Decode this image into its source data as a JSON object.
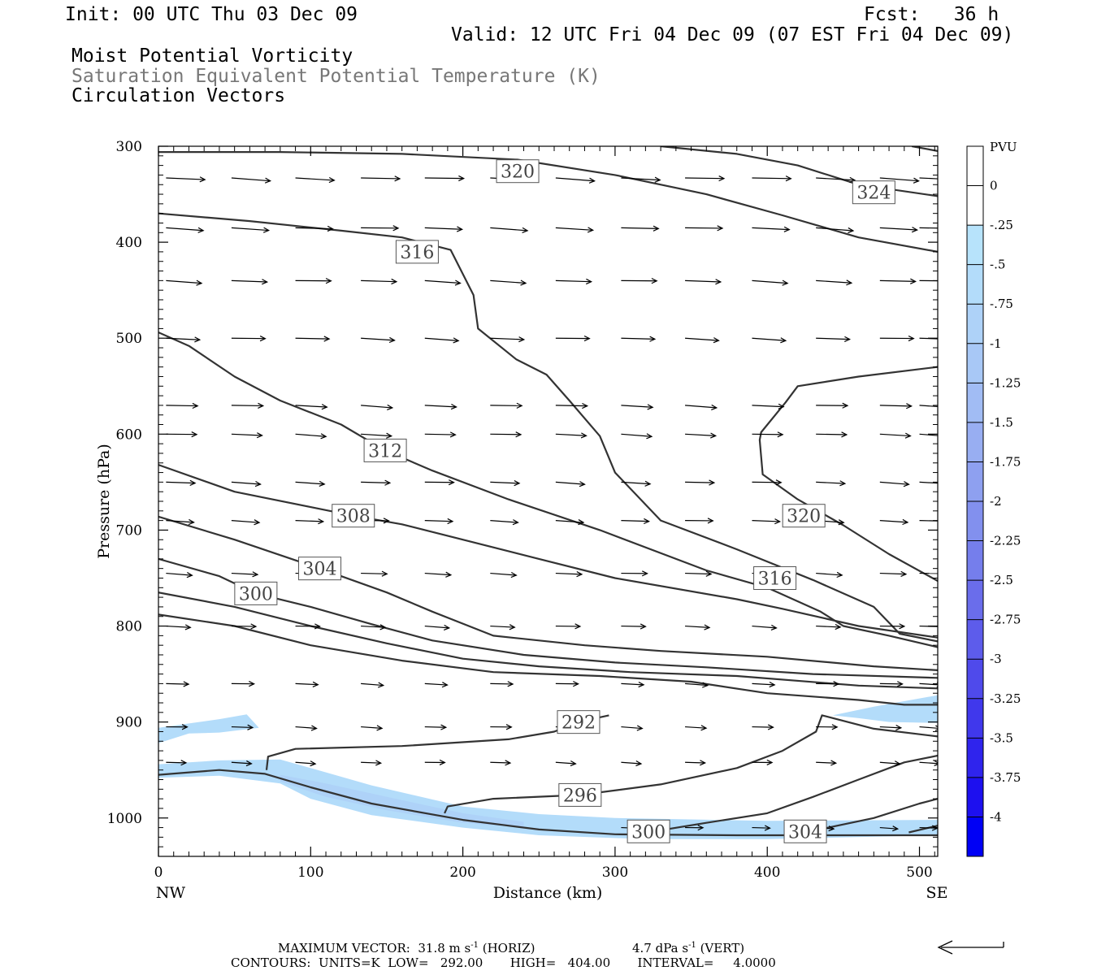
{
  "header": {
    "init": "Init: 00 UTC Thu 03 Dec 09",
    "fcst": "Fcst:   36 h",
    "valid": "Valid: 12 UTC Fri 04 Dec 09 (07 EST Fri 04 Dec 09)",
    "field1": "Moist Potential Vorticity",
    "field2": "Saturation Equivalent Potential Temperature (K)",
    "field3": "Circulation Vectors"
  },
  "footer": {
    "max_vector": "MAXIMUM VECTOR:  31.8 m s",
    "horiz": " (HORIZ)",
    "vert_val": "4.7 dPa s",
    "vert": " (VERT)",
    "exp": "-1",
    "contours": "CONTOURS:  UNITS=K  LOW=   292.00       HIGH=   404.00       INTERVAL=     4.0000"
  },
  "colors": {
    "contour": "#333333",
    "mpv_fill": "#b7e3fb",
    "mpv_fill_dark": "#9cc6f3"
  },
  "chart_data": {
    "type": "cross-section",
    "xlabel": "Distance (km)",
    "ylabel": "Pressure (hPa)",
    "xlim": [
      0,
      512
    ],
    "ylim": [
      1040,
      300
    ],
    "x_ticks": [
      0,
      100,
      200,
      300,
      400,
      500
    ],
    "y_ticks": [
      300,
      400,
      500,
      600,
      700,
      800,
      900,
      1000
    ],
    "x_end_labels": {
      "left": "NW",
      "right": "SE"
    },
    "colorbar": {
      "title": "PVU",
      "levels": [
        "0",
        "-.25",
        "-.5",
        "-.75",
        "-1",
        "-1.25",
        "-1.5",
        "-1.75",
        "-2",
        "-2.25",
        "-2.5",
        "-2.75",
        "-3",
        "-3.25",
        "-3.5",
        "-3.75",
        "-4"
      ],
      "colors": [
        "#ffffff",
        "#ffffff",
        "#b7e3fb",
        "#b3dcfa",
        "#aed2f8",
        "#a8c8f6",
        "#a1bcf4",
        "#98aef2",
        "#8ea0f0",
        "#8290ee",
        "#757eec",
        "#6a6deb",
        "#5d5ceb",
        "#4f4aeb",
        "#4038ec",
        "#2f24ed",
        "#1d10ef",
        "#0000f5"
      ]
    },
    "contour_labels": [
      {
        "text": "320",
        "x": 236,
        "p": 326
      },
      {
        "text": "324",
        "x": 470,
        "p": 348
      },
      {
        "text": "316",
        "x": 170,
        "p": 410
      },
      {
        "text": "312",
        "x": 149,
        "p": 617
      },
      {
        "text": "308",
        "x": 128,
        "p": 685
      },
      {
        "text": "320",
        "x": 424,
        "p": 685
      },
      {
        "text": "304",
        "x": 106,
        "p": 740
      },
      {
        "text": "316",
        "x": 405,
        "p": 750
      },
      {
        "text": "300",
        "x": 64,
        "p": 766
      },
      {
        "text": "292",
        "x": 276,
        "p": 900
      },
      {
        "text": "296",
        "x": 277,
        "p": 976
      },
      {
        "text": "300",
        "x": 322,
        "p": 1014
      },
      {
        "text": "304",
        "x": 425,
        "p": 1014
      }
    ],
    "contours": [
      {
        "pts": [
          [
            0,
            306
          ],
          [
            80,
            306
          ],
          [
            160,
            308
          ],
          [
            236,
            314
          ],
          [
            300,
            330
          ],
          [
            360,
            350
          ],
          [
            410,
            372
          ],
          [
            460,
            395
          ],
          [
            512,
            410
          ]
        ]
      },
      {
        "pts": [
          [
            330,
            300
          ],
          [
            380,
            308
          ],
          [
            420,
            320
          ],
          [
            460,
            340
          ],
          [
            512,
            352
          ]
        ]
      },
      {
        "pts": [
          [
            495,
            300
          ],
          [
            512,
            305
          ]
        ]
      },
      {
        "pts": [
          [
            0,
            370
          ],
          [
            60,
            378
          ],
          [
            120,
            388
          ],
          [
            160,
            395
          ],
          [
            192,
            408
          ],
          [
            207,
            455
          ],
          [
            210,
            490
          ],
          [
            235,
            522
          ],
          [
            255,
            538
          ],
          [
            270,
            565
          ],
          [
            290,
            602
          ],
          [
            300,
            640
          ],
          [
            330,
            690
          ],
          [
            380,
            720
          ],
          [
            430,
            752
          ],
          [
            470,
            780
          ],
          [
            487,
            808
          ],
          [
            512,
            816
          ]
        ]
      },
      {
        "pts": [
          [
            512,
            530
          ],
          [
            460,
            540
          ],
          [
            420,
            550
          ],
          [
            412,
            567
          ],
          [
            396,
            598
          ],
          [
            395,
            606
          ],
          [
            397,
            642
          ],
          [
            420,
            668
          ],
          [
            450,
            695
          ],
          [
            480,
            725
          ],
          [
            512,
            753
          ]
        ]
      },
      {
        "pts": [
          [
            0,
            494
          ],
          [
            20,
            508
          ],
          [
            50,
            540
          ],
          [
            80,
            565
          ],
          [
            120,
            590
          ],
          [
            149,
            617
          ],
          [
            180,
            638
          ],
          [
            230,
            668
          ],
          [
            290,
            700
          ],
          [
            360,
            742
          ],
          [
            400,
            760
          ],
          [
            435,
            785
          ],
          [
            450,
            800
          ],
          [
            480,
            810
          ],
          [
            512,
            822
          ]
        ]
      },
      {
        "pts": [
          [
            0,
            632
          ],
          [
            50,
            660
          ],
          [
            100,
            676
          ],
          [
            128,
            685
          ],
          [
            160,
            694
          ],
          [
            200,
            710
          ],
          [
            250,
            730
          ],
          [
            300,
            750
          ],
          [
            380,
            772
          ],
          [
            410,
            782
          ],
          [
            460,
            800
          ],
          [
            512,
            812
          ]
        ]
      },
      {
        "pts": [
          [
            0,
            686
          ],
          [
            50,
            710
          ],
          [
            106,
            740
          ],
          [
            150,
            765
          ],
          [
            180,
            785
          ],
          [
            220,
            810
          ],
          [
            280,
            820
          ],
          [
            330,
            826
          ],
          [
            400,
            832
          ],
          [
            470,
            842
          ],
          [
            512,
            846
          ]
        ]
      },
      {
        "pts": [
          [
            0,
            730
          ],
          [
            40,
            748
          ],
          [
            64,
            766
          ],
          [
            100,
            780
          ],
          [
            140,
            798
          ],
          [
            180,
            815
          ],
          [
            240,
            830
          ],
          [
            300,
            838
          ],
          [
            360,
            843
          ],
          [
            430,
            850
          ],
          [
            512,
            854
          ]
        ]
      },
      {
        "pts": [
          [
            0,
            765
          ],
          [
            50,
            780
          ],
          [
            100,
            800
          ],
          [
            150,
            818
          ],
          [
            200,
            834
          ],
          [
            250,
            842
          ],
          [
            310,
            848
          ],
          [
            380,
            852
          ],
          [
            460,
            862
          ],
          [
            512,
            865
          ]
        ]
      },
      {
        "pts": [
          [
            0,
            788
          ],
          [
            50,
            800
          ],
          [
            100,
            820
          ],
          [
            160,
            836
          ],
          [
            220,
            848
          ],
          [
            290,
            852
          ],
          [
            350,
            858
          ],
          [
            400,
            870
          ],
          [
            460,
            877
          ],
          [
            490,
            882
          ],
          [
            512,
            882
          ]
        ]
      },
      {
        "pts": [
          [
            0,
            955
          ],
          [
            40,
            950
          ],
          [
            70,
            954
          ],
          [
            100,
            968
          ],
          [
            140,
            985
          ],
          [
            200,
            1002
          ],
          [
            250,
            1012
          ],
          [
            300,
            1017
          ],
          [
            380,
            1018
          ],
          [
            512,
            1018
          ]
        ]
      },
      {
        "pts": [
          [
            71,
            950
          ],
          [
            72,
            936
          ],
          [
            90,
            928
          ],
          [
            160,
            925
          ],
          [
            230,
            918
          ],
          [
            260,
            910
          ],
          [
            276,
            900
          ],
          [
            296,
            893
          ]
        ]
      },
      {
        "pts": [
          [
            188,
            995
          ],
          [
            190,
            988
          ],
          [
            220,
            980
          ],
          [
            277,
            976
          ],
          [
            330,
            965
          ],
          [
            380,
            948
          ],
          [
            410,
            930
          ],
          [
            432,
            910
          ],
          [
            436,
            893
          ],
          [
            470,
            907
          ],
          [
            512,
            915
          ]
        ]
      },
      {
        "pts": [
          [
            333,
            1012
          ],
          [
            360,
            1005
          ],
          [
            400,
            995
          ],
          [
            430,
            978
          ],
          [
            460,
            960
          ],
          [
            490,
            942
          ],
          [
            512,
            935
          ]
        ]
      },
      {
        "pts": [
          [
            425,
            1015
          ],
          [
            470,
            1000
          ],
          [
            500,
            985
          ],
          [
            512,
            980
          ]
        ]
      },
      {
        "pts": [
          [
            493,
            1015
          ],
          [
            512,
            1008
          ]
        ]
      }
    ],
    "mpv_regions": [
      {
        "level": "-.5",
        "pts": [
          [
            0,
            906
          ],
          [
            40,
            897
          ],
          [
            58,
            892
          ],
          [
            66,
            906
          ],
          [
            40,
            911
          ],
          [
            20,
            912
          ],
          [
            0,
            922
          ]
        ]
      },
      {
        "level": "-.5",
        "pts": [
          [
            0,
            944
          ],
          [
            40,
            940
          ],
          [
            80,
            939
          ],
          [
            100,
            948
          ],
          [
            140,
            966
          ],
          [
            200,
            988
          ],
          [
            250,
            996
          ],
          [
            300,
            1000
          ],
          [
            400,
            1003
          ],
          [
            512,
            1002
          ],
          [
            512,
            1018
          ],
          [
            400,
            1022
          ],
          [
            320,
            1022
          ],
          [
            250,
            1018
          ],
          [
            200,
            1010
          ],
          [
            140,
            997
          ],
          [
            100,
            980
          ],
          [
            80,
            964
          ],
          [
            40,
            956
          ],
          [
            0,
            958
          ]
        ]
      },
      {
        "level": "-.75",
        "pts": [
          [
            80,
            955
          ],
          [
            110,
            964
          ],
          [
            150,
            978
          ],
          [
            200,
            995
          ],
          [
            240,
            1004
          ],
          [
            240,
            1010
          ],
          [
            200,
            1005
          ],
          [
            150,
            992
          ],
          [
            110,
            978
          ],
          [
            80,
            962
          ]
        ]
      },
      {
        "level": "-.5",
        "pts": [
          [
            443,
            893
          ],
          [
            470,
            884
          ],
          [
            512,
            872
          ],
          [
            512,
            901
          ],
          [
            480,
            900
          ],
          [
            460,
            896
          ]
        ]
      }
    ],
    "vectors": {
      "p_levels": [
        333,
        385,
        440,
        500,
        570,
        600,
        650,
        690,
        745,
        800,
        860,
        905,
        942,
        1010
      ],
      "x_positions": [
        5,
        48,
        90,
        133,
        175,
        218,
        261,
        304,
        346,
        390,
        432,
        474,
        500
      ],
      "unit": "m s-1"
    }
  }
}
